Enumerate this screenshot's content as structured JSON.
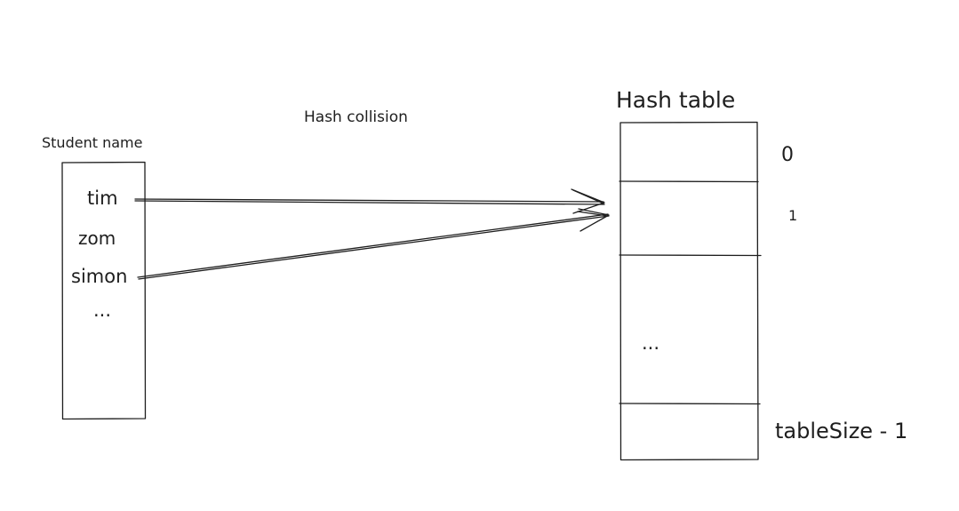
{
  "title": "Hash collision",
  "student_box": {
    "label": "Student name",
    "names": [
      "tim",
      "zom",
      "simon"
    ],
    "more": "..."
  },
  "hash_table": {
    "label": "Hash table",
    "index_first": "0",
    "index_second": "1",
    "middle_ellipsis": "...",
    "index_last": "tableSize - 1"
  },
  "arrows": [
    {
      "from": "tim",
      "to_index": "1"
    },
    {
      "from": "simon",
      "to_index": "1"
    }
  ]
}
